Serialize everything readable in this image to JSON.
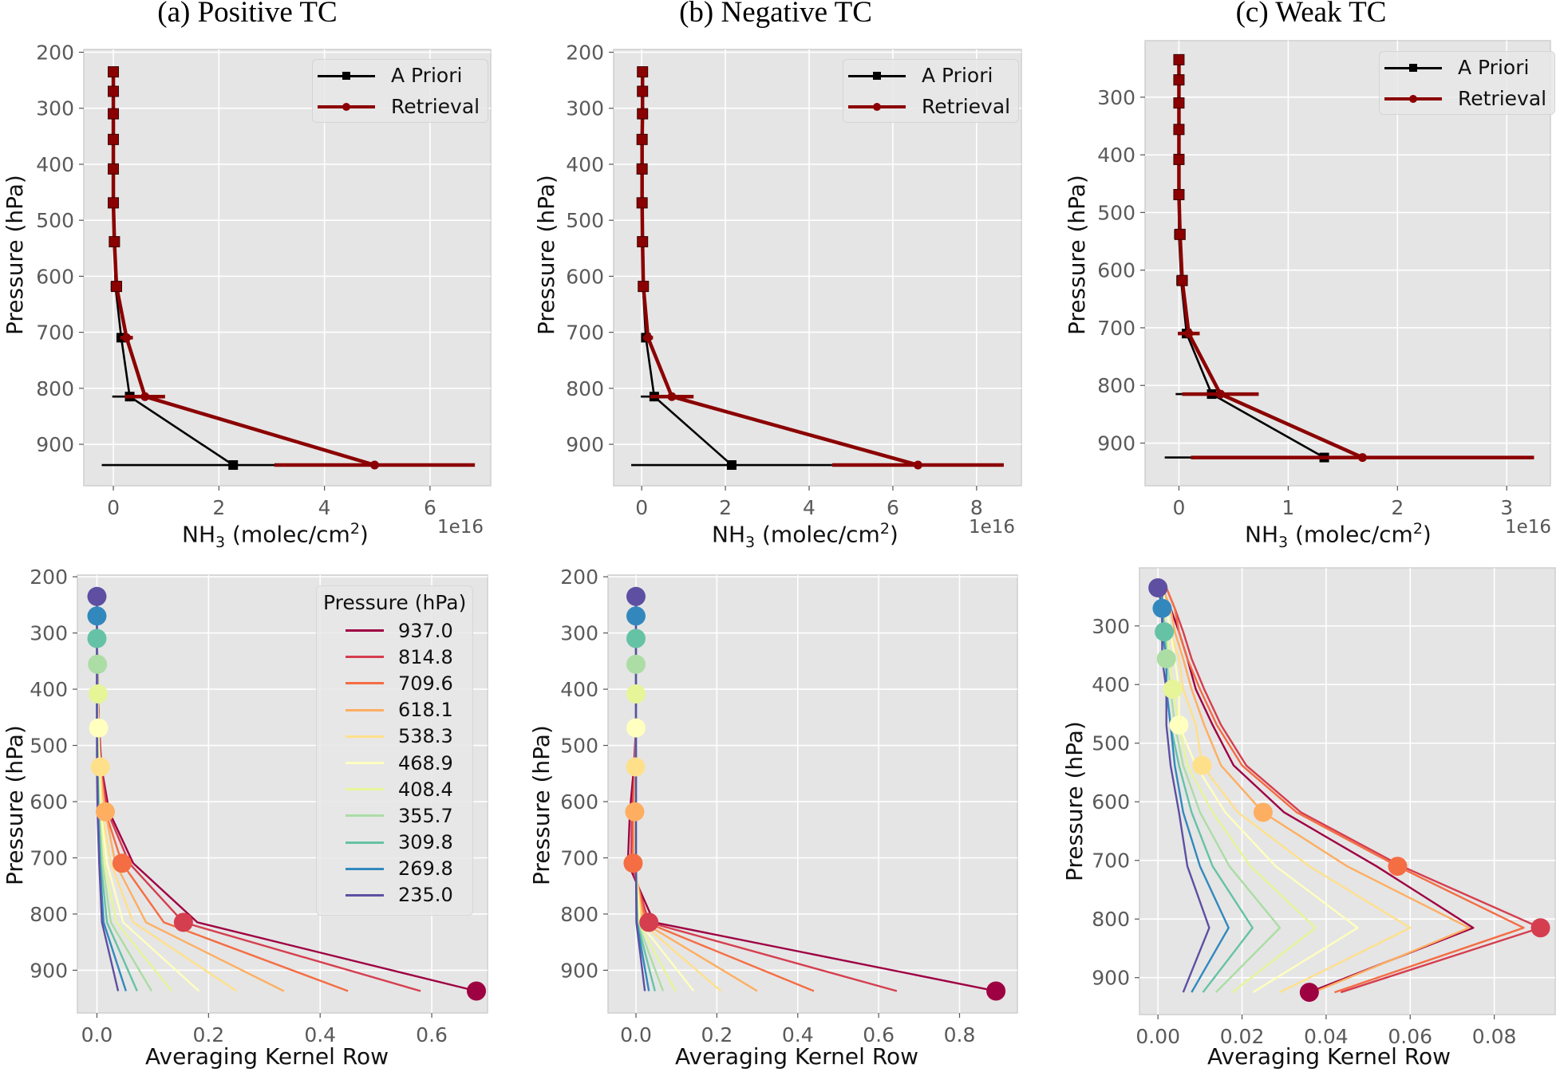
{
  "figure": {
    "titles": [
      "(a) Positive TC",
      "(b) Negative TC",
      "(c) Weak TC"
    ]
  },
  "chart_data": [
    {
      "id": "a-top",
      "type": "line",
      "title": "(a) Positive TC",
      "xlabel_main": "NH",
      "xlabel_sub": "3",
      "xlabel_rest": " (molec/cm",
      "xlabel_sup": "2",
      "xlabel_end": ")",
      "ylabel": "Pressure (hPa)",
      "x_offset_label": "1e16",
      "xlim": [
        -0.56,
        7.15
      ],
      "ylim": [
        974,
        195
      ],
      "y_inverted": true,
      "xticks": [
        0,
        2,
        4,
        6
      ],
      "yticks": [
        200,
        300,
        400,
        500,
        600,
        700,
        800,
        900
      ],
      "grid": true,
      "legend_position": "top-right",
      "pressure": [
        235.0,
        269.8,
        309.8,
        355.7,
        408.4,
        468.9,
        538.3,
        618.1,
        709.6,
        814.8,
        937.0
      ],
      "series": [
        {
          "name": "A Priori",
          "color": "#000000",
          "marker": "square",
          "values": [
            0.0,
            0.0,
            0.0,
            0.0,
            0.0,
            0.0,
            0.02,
            0.04,
            0.15,
            0.31,
            2.27
          ],
          "errors": [
            0.01,
            0.01,
            0.01,
            0.01,
            0.01,
            0.01,
            0.02,
            0.04,
            0.09,
            0.33,
            2.49
          ]
        },
        {
          "name": "Retrieval",
          "color": "#8b0000",
          "marker": "circle",
          "values": [
            0.0,
            0.0,
            0.0,
            0.0,
            0.0,
            0.0,
            0.02,
            0.06,
            0.25,
            0.6,
            4.95
          ],
          "errors": [
            0.01,
            0.01,
            0.01,
            0.01,
            0.01,
            0.01,
            0.02,
            0.05,
            0.12,
            0.38,
            1.9
          ]
        }
      ]
    },
    {
      "id": "b-top",
      "type": "line",
      "title": "(b) Negative TC",
      "xlabel_main": "NH",
      "xlabel_sub": "3",
      "xlabel_rest": " (molec/cm",
      "xlabel_sup": "2",
      "xlabel_end": ")",
      "ylabel": "Pressure (hPa)",
      "x_offset_label": "1e16",
      "xlim": [
        -0.67,
        9.07
      ],
      "ylim": [
        974,
        195
      ],
      "y_inverted": true,
      "xticks": [
        0,
        2,
        4,
        6,
        8
      ],
      "yticks": [
        200,
        300,
        400,
        500,
        600,
        700,
        800,
        900
      ],
      "grid": true,
      "legend_position": "top-right",
      "pressure": [
        235.0,
        269.8,
        309.8,
        355.7,
        408.4,
        468.9,
        538.3,
        618.1,
        709.6,
        814.8,
        937.0
      ],
      "series": [
        {
          "name": "A Priori",
          "color": "#000000",
          "marker": "square",
          "values": [
            0.02,
            0.02,
            0.02,
            0.01,
            0.01,
            0.01,
            0.02,
            0.03,
            0.1,
            0.3,
            2.15
          ],
          "errors": [
            0.01,
            0.01,
            0.01,
            0.01,
            0.01,
            0.01,
            0.02,
            0.04,
            0.08,
            0.32,
            2.4
          ]
        },
        {
          "name": "Retrieval",
          "color": "#8b0000",
          "marker": "circle",
          "values": [
            0.02,
            0.02,
            0.02,
            0.01,
            0.01,
            0.01,
            0.02,
            0.04,
            0.15,
            0.72,
            6.6
          ],
          "errors": [
            0.01,
            0.01,
            0.01,
            0.01,
            0.01,
            0.01,
            0.02,
            0.05,
            0.12,
            0.52,
            2.05
          ]
        }
      ]
    },
    {
      "id": "c-top",
      "type": "line",
      "title": "(c) Weak TC",
      "xlabel_main": "NH",
      "xlabel_sub": "3",
      "xlabel_rest": " (molec/cm",
      "xlabel_sup": "2",
      "xlabel_end": ")",
      "ylabel": "Pressure (hPa)",
      "x_offset_label": "1e16",
      "xlim": [
        -0.31,
        3.4
      ],
      "ylim": [
        974,
        202
      ],
      "y_inverted": true,
      "xticks": [
        0,
        1,
        2,
        3
      ],
      "yticks": [
        300,
        400,
        500,
        600,
        700,
        800,
        900
      ],
      "grid": true,
      "legend_position": "top-right",
      "pressure": [
        235,
        270,
        310,
        356,
        408,
        469,
        538,
        618,
        710,
        815,
        925
      ],
      "series": [
        {
          "name": "A Priori",
          "color": "#000000",
          "marker": "square",
          "values": [
            0.0,
            0.0,
            0.0,
            0.0,
            0.0,
            0.0,
            0.0,
            0.02,
            0.07,
            0.3,
            1.33
          ],
          "errors": [
            0.01,
            0.01,
            0.01,
            0.01,
            0.01,
            0.01,
            0.01,
            0.02,
            0.07,
            0.33,
            1.46
          ]
        },
        {
          "name": "Retrieval",
          "color": "#8b0000",
          "marker": "circle",
          "values": [
            0.0,
            0.0,
            0.0,
            0.0,
            0.0,
            0.0,
            0.01,
            0.03,
            0.09,
            0.38,
            1.68
          ],
          "errors": [
            0.01,
            0.01,
            0.01,
            0.01,
            0.01,
            0.01,
            0.02,
            0.03,
            0.1,
            0.35,
            1.57
          ]
        }
      ]
    },
    {
      "id": "a-bot",
      "type": "line",
      "title": "",
      "xlabel": "Averaging Kernel Row",
      "ylabel": "Pressure (hPa)",
      "xlim": [
        -0.035,
        0.7
      ],
      "ylim": [
        976,
        197
      ],
      "y_inverted": true,
      "xticks": [
        0.0,
        0.2,
        0.4,
        0.6
      ],
      "xtick_labels": [
        "0.0",
        "0.2",
        "0.4",
        "0.6"
      ],
      "yticks": [
        200,
        300,
        400,
        500,
        600,
        700,
        800,
        900
      ],
      "grid": true,
      "legend_title": "Pressure (hPa)",
      "legend_position": "top-right",
      "show_legend": true,
      "pressure": [
        235.0,
        269.8,
        309.8,
        355.7,
        408.4,
        468.9,
        538.3,
        618.1,
        709.6,
        814.8,
        937.0
      ],
      "series": [
        {
          "name": "937.0",
          "color": "#9e0142",
          "values": [
            0,
            0,
            0,
            0.001,
            0.002,
            0.004,
            0.008,
            0.022,
            0.065,
            0.18,
            0.68
          ]
        },
        {
          "name": "814.8",
          "color": "#d53e4f",
          "values": [
            0,
            0,
            0,
            0.001,
            0.002,
            0.004,
            0.007,
            0.019,
            0.058,
            0.155,
            0.58
          ]
        },
        {
          "name": "709.6",
          "color": "#f46d43",
          "values": [
            0,
            0,
            0,
            0.001,
            0.002,
            0.003,
            0.006,
            0.015,
            0.045,
            0.12,
            0.45
          ]
        },
        {
          "name": "618.1",
          "color": "#fdae61",
          "values": [
            0,
            0,
            0,
            0,
            0.001,
            0.002,
            0.005,
            0.015,
            0.033,
            0.088,
            0.335
          ]
        },
        {
          "name": "538.3",
          "color": "#fee08b",
          "values": [
            0,
            0,
            0,
            0,
            0.001,
            0.002,
            0.006,
            0.009,
            0.025,
            0.065,
            0.25
          ]
        },
        {
          "name": "468.9",
          "color": "#ffffbf",
          "values": [
            0,
            0,
            0,
            0,
            0.001,
            0.003,
            0.003,
            0.007,
            0.018,
            0.047,
            0.183
          ]
        },
        {
          "name": "408.4",
          "color": "#e6f598",
          "values": [
            0,
            0,
            0,
            0,
            0.002,
            0.001,
            0.002,
            0.005,
            0.013,
            0.035,
            0.134
          ]
        },
        {
          "name": "355.7",
          "color": "#abdda4",
          "values": [
            0,
            0,
            0,
            0.001,
            0.001,
            0.001,
            0.002,
            0.004,
            0.01,
            0.025,
            0.098
          ]
        },
        {
          "name": "309.8",
          "color": "#66c2a5",
          "values": [
            0,
            0,
            0,
            0,
            0,
            0,
            0.001,
            0.003,
            0.007,
            0.018,
            0.072
          ]
        },
        {
          "name": "269.8",
          "color": "#3288bd",
          "values": [
            0,
            0,
            0,
            0,
            0,
            0,
            0.001,
            0.002,
            0.005,
            0.012,
            0.052
          ]
        },
        {
          "name": "235.0",
          "color": "#5e4fa2",
          "values": [
            0,
            0,
            0,
            0,
            0,
            0,
            0,
            0.001,
            0.004,
            0.009,
            0.038
          ]
        }
      ]
    },
    {
      "id": "b-bot",
      "type": "line",
      "title": "",
      "xlabel": "Averaging Kernel Row",
      "ylabel": "Pressure (hPa)",
      "xlim": [
        -0.069,
        0.943
      ],
      "ylim": [
        976,
        197
      ],
      "y_inverted": true,
      "xticks": [
        0.0,
        0.2,
        0.4,
        0.6,
        0.8
      ],
      "xtick_labels": [
        "0.0",
        "0.2",
        "0.4",
        "0.6",
        "0.8"
      ],
      "yticks": [
        200,
        300,
        400,
        500,
        600,
        700,
        800,
        900
      ],
      "grid": true,
      "show_legend": false,
      "pressure": [
        235.0,
        269.8,
        309.8,
        355.7,
        408.4,
        468.9,
        538.3,
        618.1,
        709.6,
        814.8,
        937.0
      ],
      "series": [
        {
          "name": "937.0",
          "color": "#9e0142",
          "values": [
            0,
            0,
            0,
            0,
            0,
            0,
            -0.005,
            -0.015,
            -0.02,
            0.045,
            0.89
          ]
        },
        {
          "name": "814.8",
          "color": "#d53e4f",
          "values": [
            0,
            0,
            0,
            0,
            0,
            0,
            -0.003,
            -0.01,
            -0.012,
            0.032,
            0.645
          ]
        },
        {
          "name": "709.6",
          "color": "#f46d43",
          "values": [
            0,
            0,
            0,
            0,
            0,
            0,
            -0.002,
            -0.006,
            -0.007,
            0.025,
            0.44
          ]
        },
        {
          "name": "618.1",
          "color": "#fdae61",
          "values": [
            0,
            0,
            0,
            0,
            0,
            0,
            -0.001,
            -0.003,
            -0.004,
            0.018,
            0.3
          ]
        },
        {
          "name": "538.3",
          "color": "#fee08b",
          "values": [
            0,
            0,
            0,
            0,
            0,
            0,
            -0.001,
            -0.002,
            -0.002,
            0.013,
            0.21
          ]
        },
        {
          "name": "468.9",
          "color": "#ffffbf",
          "values": [
            0,
            0,
            0,
            0,
            0,
            0,
            0,
            -0.001,
            -0.001,
            0.009,
            0.143
          ]
        },
        {
          "name": "408.4",
          "color": "#e6f598",
          "values": [
            0,
            0,
            0,
            0,
            0,
            0,
            0,
            0,
            0,
            0.006,
            0.098
          ]
        },
        {
          "name": "355.7",
          "color": "#abdda4",
          "values": [
            0,
            0,
            0,
            0,
            0,
            0,
            0,
            0,
            0,
            0.004,
            0.067
          ]
        },
        {
          "name": "309.8",
          "color": "#66c2a5",
          "values": [
            0,
            0,
            0,
            0,
            0,
            0,
            0,
            0,
            0,
            0.003,
            0.047
          ]
        },
        {
          "name": "269.8",
          "color": "#3288bd",
          "values": [
            0,
            0,
            0,
            0,
            0,
            0,
            0,
            0,
            0,
            0.002,
            0.032
          ]
        },
        {
          "name": "235.0",
          "color": "#5e4fa2",
          "values": [
            0,
            0,
            0,
            0,
            0,
            0,
            0,
            0,
            0,
            0.001,
            0.022
          ]
        }
      ]
    },
    {
      "id": "c-bot",
      "type": "line",
      "title": "",
      "xlabel": "Averaging Kernel Row",
      "ylabel": "Pressure (hPa)",
      "xlim": [
        -0.0044,
        0.0945
      ],
      "ylim": [
        963,
        201
      ],
      "y_inverted": true,
      "xticks": [
        0.0,
        0.02,
        0.04,
        0.06,
        0.08
      ],
      "xtick_labels": [
        "0.00",
        "0.02",
        "0.04",
        "0.06",
        "0.08"
      ],
      "yticks": [
        300,
        400,
        500,
        600,
        700,
        800,
        900
      ],
      "grid": true,
      "show_legend": false,
      "pressure": [
        235,
        270,
        310,
        356,
        408,
        469,
        538,
        618,
        710,
        815,
        925
      ],
      "series": [
        {
          "name": "937.0",
          "color": "#9e0142",
          "values": [
            0.001,
            0.003,
            0.005,
            0.007,
            0.009,
            0.013,
            0.018,
            0.03,
            0.052,
            0.075,
            0.036
          ]
        },
        {
          "name": "814.8",
          "color": "#d53e4f",
          "values": [
            0.002,
            0.004,
            0.006,
            0.008,
            0.011,
            0.015,
            0.021,
            0.034,
            0.058,
            0.091,
            0.0435
          ]
        },
        {
          "name": "709.6",
          "color": "#f46d43",
          "values": [
            0.002,
            0.004,
            0.005,
            0.007,
            0.01,
            0.014,
            0.02,
            0.033,
            0.057,
            0.087,
            0.042
          ]
        },
        {
          "name": "618.1",
          "color": "#fdae61",
          "values": [
            0.001,
            0.003,
            0.004,
            0.006,
            0.008,
            0.011,
            0.015,
            0.025,
            0.045,
            0.074,
            0.037
          ]
        },
        {
          "name": "538.3",
          "color": "#fee08b",
          "values": [
            0.001,
            0.002,
            0.003,
            0.005,
            0.006,
            0.009,
            0.0105,
            0.019,
            0.036,
            0.06,
            0.029
          ]
        },
        {
          "name": "468.9",
          "color": "#ffffbf",
          "values": [
            0.001,
            0.002,
            0.003,
            0.004,
            0.005,
            0.005,
            0.009,
            0.016,
            0.028,
            0.0475,
            0.0226
          ]
        },
        {
          "name": "408.4",
          "color": "#e6f598",
          "values": [
            0.001,
            0.001,
            0.002,
            0.003,
            0.0035,
            0.005,
            0.007,
            0.013,
            0.022,
            0.0375,
            0.0177
          ]
        },
        {
          "name": "355.7",
          "color": "#abdda4",
          "values": [
            0.001,
            0.001,
            0.002,
            0.002,
            0.003,
            0.004,
            0.006,
            0.01,
            0.017,
            0.029,
            0.0138
          ]
        },
        {
          "name": "309.8",
          "color": "#66c2a5",
          "values": [
            0.001,
            0.001,
            0.0015,
            0.002,
            0.002,
            0.003,
            0.005,
            0.008,
            0.013,
            0.0225,
            0.0107
          ]
        },
        {
          "name": "269.8",
          "color": "#3288bd",
          "values": [
            0.001,
            0.001,
            0.001,
            0.002,
            0.002,
            0.003,
            0.004,
            0.006,
            0.01,
            0.0168,
            0.008
          ]
        },
        {
          "name": "235.0",
          "color": "#5e4fa2",
          "values": [
            0.0,
            0.001,
            0.001,
            0.001,
            0.002,
            0.002,
            0.003,
            0.005,
            0.007,
            0.0122,
            0.006
          ]
        }
      ]
    }
  ]
}
